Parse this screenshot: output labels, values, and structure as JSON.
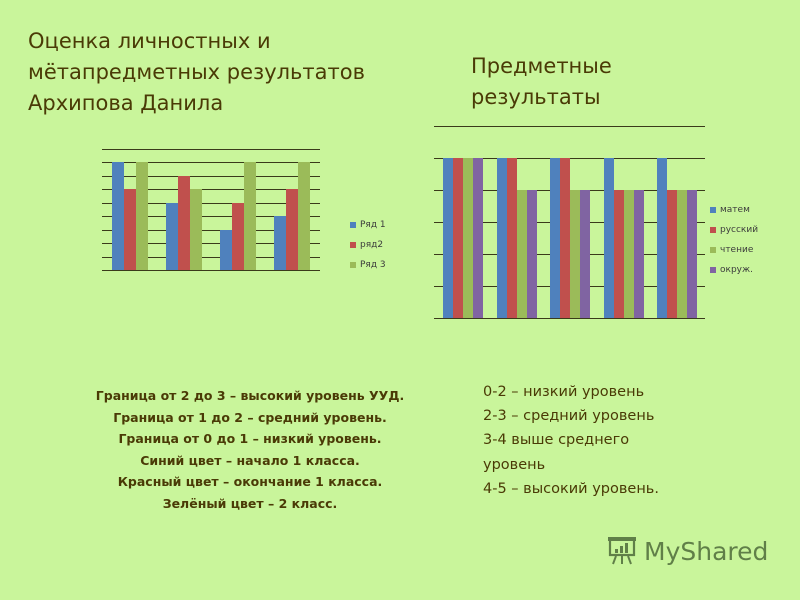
{
  "slide": {
    "background": "#c9f59b",
    "title_left": [
      "Оценка личностных и",
      "мётапредметных результатов",
      "Архипова Данила"
    ],
    "title_right": [
      "Предметные",
      "результаты"
    ],
    "notes_left": [
      "Граница  от 2 до 3 – высокий уровень УУД.",
      "Граница от 1 до 2 – средний уровень.",
      "Граница от 0 до 1 – низкий уровень.",
      "Синий цвет – начало  1 класса.",
      "Красный цвет – окончание  1 класса.",
      "Зелёный цвет – 2 класс."
    ],
    "notes_right": [
      "0-2 – низкий уровень",
      "2-3 – средний уровень",
      "3-4 выше среднего",
      "уровень",
      "4-5 – высокий уровень."
    ],
    "watermark": "MyShared"
  },
  "chart_data": [
    {
      "type": "bar",
      "title": "Оценка личностных и метапредметных результатов Архипова Данила",
      "categories": [
        "1",
        "2",
        "3",
        "4"
      ],
      "series": [
        {
          "name": "Ряд 1",
          "color": "#4f81bd",
          "values": [
            2.67,
            1.67,
            1.0,
            1.33
          ]
        },
        {
          "name": "ряд2",
          "color": "#c0504d",
          "values": [
            2.0,
            2.33,
            1.67,
            2.0
          ]
        },
        {
          "name": "Ряд 3",
          "color": "#9bbb59",
          "values": [
            2.67,
            2.0,
            2.67,
            2.67
          ]
        }
      ],
      "xlabel": "",
      "ylabel": "",
      "ylim": [
        0,
        3
      ],
      "grid_steps": 9,
      "tick_labels_visible": false,
      "grid": true,
      "legend_position": "right"
    },
    {
      "type": "bar",
      "title": "Предметные результаты",
      "categories": [
        "1",
        "2",
        "3",
        "4",
        "5"
      ],
      "series": [
        {
          "name": "матем",
          "color": "#4f81bd",
          "values": [
            5,
            5,
            5,
            5,
            5
          ]
        },
        {
          "name": "русский",
          "color": "#c0504d",
          "values": [
            5,
            5,
            5,
            4,
            4
          ]
        },
        {
          "name": "чтение",
          "color": "#9bbb59",
          "values": [
            5,
            4,
            4,
            4,
            4
          ]
        },
        {
          "name": "окруж.",
          "color": "#8064a2",
          "values": [
            5,
            4,
            4,
            4,
            4
          ]
        }
      ],
      "xlabel": "",
      "ylabel": "",
      "ylim": [
        0,
        6
      ],
      "grid_steps": 6,
      "tick_labels_visible": false,
      "grid": true,
      "legend_position": "right"
    }
  ]
}
